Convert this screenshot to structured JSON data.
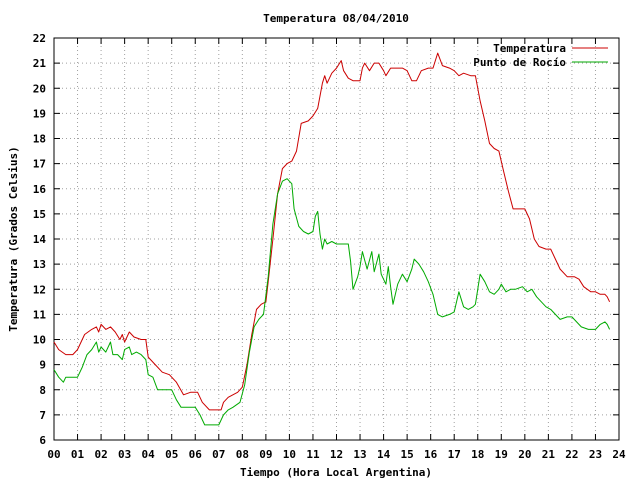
{
  "chart_data": {
    "type": "line",
    "title": "Temperatura 08/04/2010",
    "xlabel": "Tiempo (Hora Local Argentina)",
    "ylabel": "Temperatura (Grados Celsius)",
    "xlim": [
      0,
      24
    ],
    "ylim": [
      6,
      22
    ],
    "grid": true,
    "legend_position": "top-right",
    "x_tick_labels": [
      "00",
      "01",
      "02",
      "03",
      "04",
      "05",
      "06",
      "07",
      "08",
      "09",
      "10",
      "11",
      "12",
      "13",
      "14",
      "15",
      "16",
      "17",
      "18",
      "19",
      "20",
      "21",
      "22",
      "23",
      "24"
    ],
    "y_tick_labels": [
      "6",
      "7",
      "8",
      "9",
      "10",
      "11",
      "12",
      "13",
      "14",
      "15",
      "16",
      "17",
      "18",
      "19",
      "20",
      "21",
      "22"
    ],
    "series": [
      {
        "name": "Temperatura",
        "color": "#cc0000",
        "points": [
          [
            0.0,
            9.9
          ],
          [
            0.2,
            9.6
          ],
          [
            0.5,
            9.4
          ],
          [
            0.8,
            9.4
          ],
          [
            1.0,
            9.6
          ],
          [
            1.3,
            10.2
          ],
          [
            1.6,
            10.4
          ],
          [
            1.8,
            10.5
          ],
          [
            1.9,
            10.3
          ],
          [
            2.0,
            10.6
          ],
          [
            2.2,
            10.4
          ],
          [
            2.4,
            10.5
          ],
          [
            2.6,
            10.3
          ],
          [
            2.8,
            10.0
          ],
          [
            2.9,
            10.2
          ],
          [
            3.0,
            9.9
          ],
          [
            3.2,
            10.3
          ],
          [
            3.4,
            10.1
          ],
          [
            3.7,
            10.0
          ],
          [
            3.9,
            10.0
          ],
          [
            4.0,
            9.3
          ],
          [
            4.3,
            9.0
          ],
          [
            4.6,
            8.7
          ],
          [
            4.9,
            8.6
          ],
          [
            5.2,
            8.3
          ],
          [
            5.5,
            7.8
          ],
          [
            5.8,
            7.9
          ],
          [
            6.1,
            7.9
          ],
          [
            6.3,
            7.5
          ],
          [
            6.6,
            7.2
          ],
          [
            6.9,
            7.2
          ],
          [
            7.1,
            7.2
          ],
          [
            7.2,
            7.5
          ],
          [
            7.4,
            7.7
          ],
          [
            7.6,
            7.8
          ],
          [
            7.8,
            7.9
          ],
          [
            8.0,
            8.1
          ],
          [
            8.2,
            9.0
          ],
          [
            8.4,
            10.2
          ],
          [
            8.6,
            11.2
          ],
          [
            8.8,
            11.4
          ],
          [
            9.0,
            11.5
          ],
          [
            9.1,
            12.3
          ],
          [
            9.3,
            14.0
          ],
          [
            9.5,
            15.8
          ],
          [
            9.7,
            16.8
          ],
          [
            9.9,
            17.0
          ],
          [
            10.1,
            17.1
          ],
          [
            10.3,
            17.5
          ],
          [
            10.5,
            18.6
          ],
          [
            10.8,
            18.7
          ],
          [
            11.0,
            18.9
          ],
          [
            11.2,
            19.2
          ],
          [
            11.4,
            20.2
          ],
          [
            11.5,
            20.5
          ],
          [
            11.6,
            20.2
          ],
          [
            11.8,
            20.6
          ],
          [
            12.0,
            20.8
          ],
          [
            12.2,
            21.1
          ],
          [
            12.3,
            20.7
          ],
          [
            12.5,
            20.4
          ],
          [
            12.7,
            20.3
          ],
          [
            13.0,
            20.3
          ],
          [
            13.1,
            20.8
          ],
          [
            13.2,
            21.0
          ],
          [
            13.4,
            20.7
          ],
          [
            13.6,
            21.0
          ],
          [
            13.8,
            21.0
          ],
          [
            14.0,
            20.7
          ],
          [
            14.1,
            20.5
          ],
          [
            14.3,
            20.8
          ],
          [
            14.6,
            20.8
          ],
          [
            14.8,
            20.8
          ],
          [
            15.0,
            20.7
          ],
          [
            15.2,
            20.3
          ],
          [
            15.4,
            20.3
          ],
          [
            15.6,
            20.7
          ],
          [
            15.9,
            20.8
          ],
          [
            16.1,
            20.8
          ],
          [
            16.3,
            21.4
          ],
          [
            16.5,
            20.9
          ],
          [
            16.8,
            20.8
          ],
          [
            17.0,
            20.7
          ],
          [
            17.2,
            20.5
          ],
          [
            17.4,
            20.6
          ],
          [
            17.7,
            20.5
          ],
          [
            17.9,
            20.5
          ],
          [
            18.1,
            19.5
          ],
          [
            18.3,
            18.7
          ],
          [
            18.5,
            17.8
          ],
          [
            18.7,
            17.6
          ],
          [
            18.9,
            17.5
          ],
          [
            19.1,
            16.7
          ],
          [
            19.3,
            15.9
          ],
          [
            19.5,
            15.2
          ],
          [
            19.8,
            15.2
          ],
          [
            20.0,
            15.2
          ],
          [
            20.2,
            14.8
          ],
          [
            20.4,
            14.0
          ],
          [
            20.6,
            13.7
          ],
          [
            20.9,
            13.6
          ],
          [
            21.1,
            13.6
          ],
          [
            21.3,
            13.2
          ],
          [
            21.5,
            12.8
          ],
          [
            21.8,
            12.5
          ],
          [
            22.1,
            12.5
          ],
          [
            22.3,
            12.4
          ],
          [
            22.5,
            12.1
          ],
          [
            22.8,
            11.9
          ],
          [
            23.0,
            11.9
          ],
          [
            23.2,
            11.8
          ],
          [
            23.4,
            11.8
          ],
          [
            23.5,
            11.7
          ],
          [
            23.6,
            11.5
          ]
        ]
      },
      {
        "name": "Punto de Rocío",
        "color": "#00aa00",
        "points": [
          [
            0.0,
            8.8
          ],
          [
            0.2,
            8.5
          ],
          [
            0.4,
            8.3
          ],
          [
            0.5,
            8.5
          ],
          [
            0.8,
            8.5
          ],
          [
            1.0,
            8.5
          ],
          [
            1.2,
            8.9
          ],
          [
            1.4,
            9.4
          ],
          [
            1.6,
            9.6
          ],
          [
            1.8,
            9.9
          ],
          [
            1.9,
            9.5
          ],
          [
            2.0,
            9.7
          ],
          [
            2.2,
            9.5
          ],
          [
            2.4,
            9.9
          ],
          [
            2.5,
            9.4
          ],
          [
            2.7,
            9.4
          ],
          [
            2.9,
            9.2
          ],
          [
            3.0,
            9.6
          ],
          [
            3.2,
            9.7
          ],
          [
            3.3,
            9.4
          ],
          [
            3.5,
            9.5
          ],
          [
            3.7,
            9.4
          ],
          [
            3.9,
            9.2
          ],
          [
            4.0,
            8.6
          ],
          [
            4.2,
            8.5
          ],
          [
            4.4,
            8.0
          ],
          [
            4.7,
            8.0
          ],
          [
            5.0,
            8.0
          ],
          [
            5.2,
            7.6
          ],
          [
            5.4,
            7.3
          ],
          [
            5.7,
            7.3
          ],
          [
            6.0,
            7.3
          ],
          [
            6.2,
            7.0
          ],
          [
            6.4,
            6.6
          ],
          [
            6.8,
            6.6
          ],
          [
            7.0,
            6.6
          ],
          [
            7.2,
            7.0
          ],
          [
            7.4,
            7.2
          ],
          [
            7.6,
            7.3
          ],
          [
            7.9,
            7.5
          ],
          [
            8.1,
            8.2
          ],
          [
            8.3,
            9.5
          ],
          [
            8.5,
            10.5
          ],
          [
            8.7,
            10.8
          ],
          [
            8.9,
            11.0
          ],
          [
            9.1,
            12.5
          ],
          [
            9.3,
            14.6
          ],
          [
            9.5,
            15.8
          ],
          [
            9.7,
            16.3
          ],
          [
            9.9,
            16.4
          ],
          [
            10.0,
            16.3
          ],
          [
            10.1,
            16.2
          ],
          [
            10.2,
            15.2
          ],
          [
            10.4,
            14.5
          ],
          [
            10.6,
            14.3
          ],
          [
            10.8,
            14.2
          ],
          [
            11.0,
            14.3
          ],
          [
            11.1,
            14.9
          ],
          [
            11.2,
            15.1
          ],
          [
            11.3,
            14.2
          ],
          [
            11.4,
            13.6
          ],
          [
            11.5,
            14.0
          ],
          [
            11.6,
            13.8
          ],
          [
            11.8,
            13.9
          ],
          [
            12.0,
            13.8
          ],
          [
            12.3,
            13.8
          ],
          [
            12.5,
            13.8
          ],
          [
            12.6,
            13.1
          ],
          [
            12.7,
            12.0
          ],
          [
            12.9,
            12.5
          ],
          [
            13.0,
            12.9
          ],
          [
            13.1,
            13.5
          ],
          [
            13.3,
            12.8
          ],
          [
            13.5,
            13.5
          ],
          [
            13.6,
            12.7
          ],
          [
            13.8,
            13.4
          ],
          [
            13.9,
            12.6
          ],
          [
            14.1,
            12.2
          ],
          [
            14.2,
            12.9
          ],
          [
            14.3,
            12.1
          ],
          [
            14.4,
            11.4
          ],
          [
            14.6,
            12.2
          ],
          [
            14.8,
            12.6
          ],
          [
            15.0,
            12.3
          ],
          [
            15.2,
            12.8
          ],
          [
            15.3,
            13.2
          ],
          [
            15.5,
            13.0
          ],
          [
            15.7,
            12.7
          ],
          [
            15.9,
            12.3
          ],
          [
            16.1,
            11.8
          ],
          [
            16.3,
            11.0
          ],
          [
            16.5,
            10.9
          ],
          [
            16.8,
            11.0
          ],
          [
            17.0,
            11.1
          ],
          [
            17.2,
            11.9
          ],
          [
            17.4,
            11.3
          ],
          [
            17.6,
            11.2
          ],
          [
            17.8,
            11.3
          ],
          [
            17.9,
            11.4
          ],
          [
            18.1,
            12.6
          ],
          [
            18.3,
            12.3
          ],
          [
            18.5,
            11.9
          ],
          [
            18.7,
            11.8
          ],
          [
            18.9,
            12.0
          ],
          [
            19.0,
            12.2
          ],
          [
            19.2,
            11.9
          ],
          [
            19.4,
            12.0
          ],
          [
            19.6,
            12.0
          ],
          [
            19.9,
            12.1
          ],
          [
            20.1,
            11.9
          ],
          [
            20.3,
            12.0
          ],
          [
            20.5,
            11.7
          ],
          [
            20.7,
            11.5
          ],
          [
            20.9,
            11.3
          ],
          [
            21.1,
            11.2
          ],
          [
            21.3,
            11.0
          ],
          [
            21.5,
            10.8
          ],
          [
            21.8,
            10.9
          ],
          [
            22.0,
            10.9
          ],
          [
            22.2,
            10.7
          ],
          [
            22.4,
            10.5
          ],
          [
            22.7,
            10.4
          ],
          [
            23.0,
            10.4
          ],
          [
            23.2,
            10.6
          ],
          [
            23.4,
            10.7
          ],
          [
            23.5,
            10.6
          ],
          [
            23.6,
            10.4
          ]
        ]
      }
    ]
  }
}
